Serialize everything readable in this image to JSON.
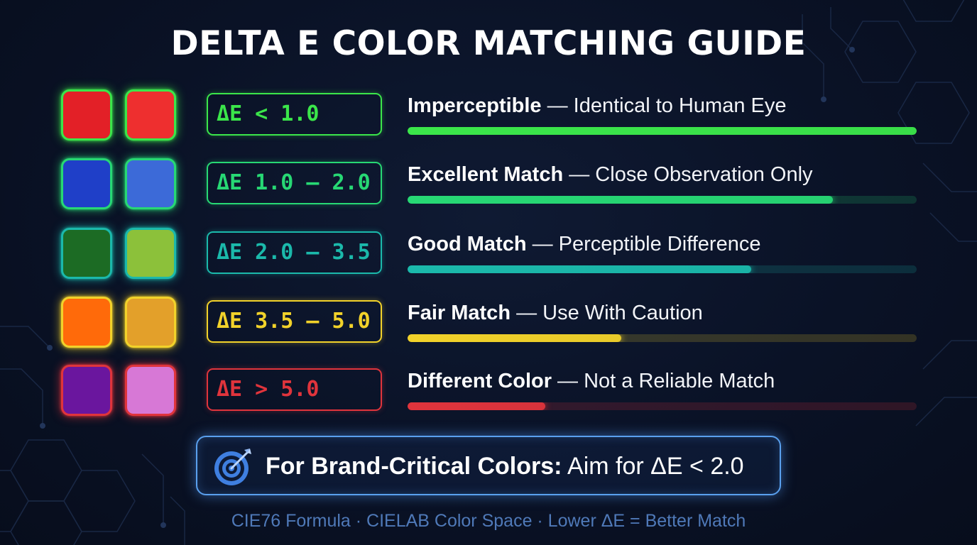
{
  "title": "DELTA E COLOR MATCHING GUIDE",
  "rows": [
    {
      "range": "ΔE < 1.0",
      "label": "Imperceptible",
      "detail": " — Identical to Human Eye",
      "accent": "#3be64a",
      "swatch_a": "#e32027",
      "swatch_b": "#ee2f2f",
      "bar_fraction": 1.0
    },
    {
      "range": "ΔE 1.0 – 2.0",
      "label": "Excellent Match",
      "detail": " — Close Observation Only",
      "accent": "#27d874",
      "swatch_a": "#1f3fc8",
      "swatch_b": "#3c6ad8",
      "bar_fraction": 0.835
    },
    {
      "range": "ΔE 2.0 – 3.5",
      "label": "Good Match",
      "detail": " — Perceptible Difference",
      "accent": "#1bb9ab",
      "swatch_a": "#1c6b24",
      "swatch_b": "#8cc13a",
      "bar_fraction": 0.675
    },
    {
      "range": "ΔE 3.5 – 5.0",
      "label": "Fair Match",
      "detail": " — Use With Caution",
      "accent": "#f2d22a",
      "swatch_a": "#ff6a0a",
      "swatch_b": "#e3a02a",
      "bar_fraction": 0.42
    },
    {
      "range": "ΔE > 5.0",
      "label": "Different Color",
      "detail": " — Not a Reliable Match",
      "accent": "#e0343c",
      "swatch_a": "#6a169e",
      "swatch_b": "#d778d6",
      "bar_fraction": 0.27
    }
  ],
  "callout": {
    "icon": "target-icon",
    "strong": "For Brand-Critical Colors:",
    "rest": " Aim for ΔE < 2.0"
  },
  "footer": "CIE76 Formula · CIELAB Color Space · Lower ΔE = Better Match"
}
